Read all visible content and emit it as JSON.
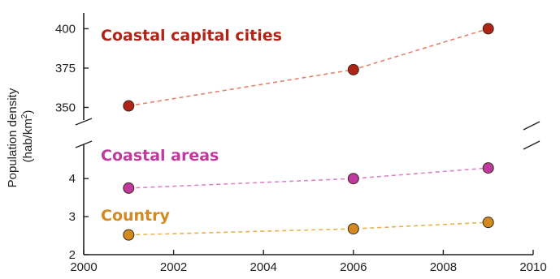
{
  "chart_data": {
    "type": "line",
    "ylabel_line1": "Population density",
    "ylabel_line2_prefix": "(hab/km",
    "ylabel_line2_sup": "2",
    "ylabel_line2_suffix": ")",
    "x_ticks": [
      2000,
      2002,
      2004,
      2006,
      2008,
      2010
    ],
    "x_tick_labels": [
      "2000",
      "2002",
      "2004",
      "2006",
      "2008",
      "2010"
    ],
    "xlim": [
      2000,
      2010
    ],
    "y_upper_ticks": [
      350,
      375,
      400
    ],
    "y_upper_tick_labels": [
      "350",
      "375",
      "400"
    ],
    "y_upper_range": [
      342,
      410
    ],
    "y_lower_ticks": [
      2,
      3,
      4
    ],
    "y_lower_tick_labels": [
      "2",
      "3",
      "4"
    ],
    "y_lower_range": [
      2,
      4.9
    ],
    "broken_axis": true,
    "grid": false,
    "series": [
      {
        "name": "Coastal capital cities",
        "panel": "upper",
        "color": "#b02418",
        "line_color": "#e3826a",
        "x": [
          2001,
          2006,
          2009
        ],
        "y": [
          351,
          374,
          400
        ]
      },
      {
        "name": "Coastal areas",
        "panel": "lower",
        "color": "#c0399f",
        "line_color": "#dc84cb",
        "x": [
          2001,
          2006,
          2009
        ],
        "y": [
          3.75,
          4.0,
          4.28
        ]
      },
      {
        "name": "Country",
        "panel": "lower",
        "color": "#d4891e",
        "line_color": "#e8b24a",
        "x": [
          2001,
          2006,
          2009
        ],
        "y": [
          2.52,
          2.68,
          2.85
        ]
      }
    ]
  }
}
